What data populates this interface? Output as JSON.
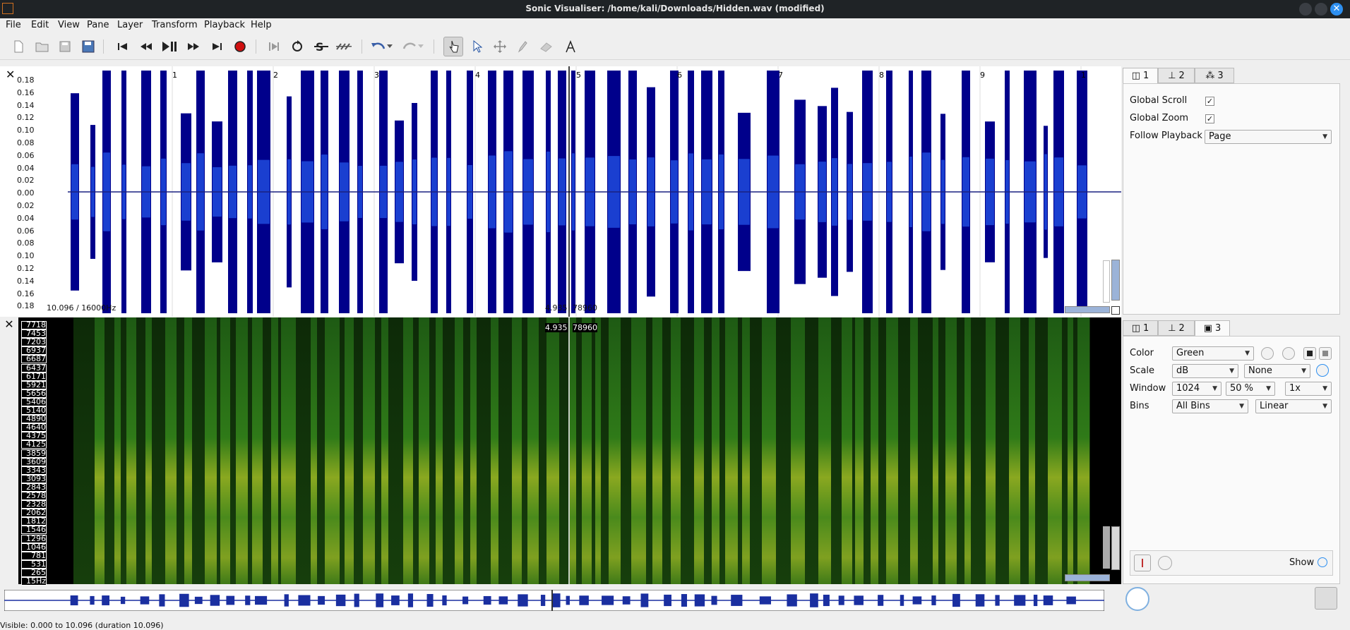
{
  "window": {
    "title": "Sonic Visualiser: /home/kali/Downloads/Hidden.wav (modified)"
  },
  "menu": [
    "File",
    "Edit",
    "View",
    "Pane",
    "Layer",
    "Transform",
    "Playback",
    "Help"
  ],
  "toolbar": {
    "icons": [
      "new-file",
      "open-file",
      "save-file",
      "save-session",
      "rewind-start",
      "rewind",
      "play-pause",
      "fast-forward",
      "ffwd-end",
      "record",
      "play-selection",
      "loop",
      "solo",
      "follow",
      "undo",
      "redo",
      "navigate",
      "select",
      "move",
      "draw",
      "erase",
      "measure"
    ]
  },
  "waveform_pane": {
    "scale_ticks": [
      "0.18",
      "0.16",
      "0.14",
      "0.12",
      "0.10",
      "0.08",
      "0.06",
      "0.04",
      "0.02",
      "0.00",
      "0.02",
      "0.04",
      "0.06",
      "0.08",
      "0.10",
      "0.12",
      "0.14",
      "0.16",
      "0.18"
    ],
    "bar_numbers": [
      "1",
      "2",
      "3",
      "4",
      "5",
      "6",
      "7",
      "8",
      "9",
      "1"
    ],
    "info_left": "10.096 / 16000Hz",
    "playhead_time": "4.935",
    "playhead_frame": "78960"
  },
  "spectrogram_pane": {
    "freq_ticks": [
      "7718",
      "7453",
      "7203",
      "6937",
      "6687",
      "6437",
      "6171",
      "5921",
      "5656",
      "5406",
      "5140",
      "4890",
      "4640",
      "4375",
      "4125",
      "3859",
      "3609",
      "3343",
      "3093",
      "2843",
      "2578",
      "2328",
      "2062",
      "1812",
      "1546",
      "1296",
      "1046",
      "781",
      "531",
      "265",
      "15Hz"
    ],
    "playhead_time": "4.935",
    "playhead_frame": "78960"
  },
  "properties_top": {
    "tabs": [
      "1",
      "2",
      "3"
    ],
    "global_scroll_label": "Global Scroll",
    "global_zoom_label": "Global Zoom",
    "follow_playback_label": "Follow Playback",
    "follow_playback_value": "Page"
  },
  "properties_bottom": {
    "tabs": [
      "1",
      "2",
      "3"
    ],
    "color_label": "Color",
    "color_value": "Green",
    "scale_label": "Scale",
    "scale_value": "dB",
    "scale_norm": "None",
    "window_label": "Window",
    "window_size": "1024",
    "window_overlap": "50 %",
    "window_oversample": "1x",
    "bins_label": "Bins",
    "bins_value": "All Bins",
    "bins_scale": "Linear",
    "show_label": "Show"
  },
  "status": {
    "text": "Visible: 0.000 to 10.096 (duration 10.096)"
  },
  "colors": {
    "waveform_dark": "#00008b",
    "waveform_mid": "#1a3fd0",
    "spectro_green": "#3f8a1c",
    "spectro_yellow": "#c8c020"
  }
}
